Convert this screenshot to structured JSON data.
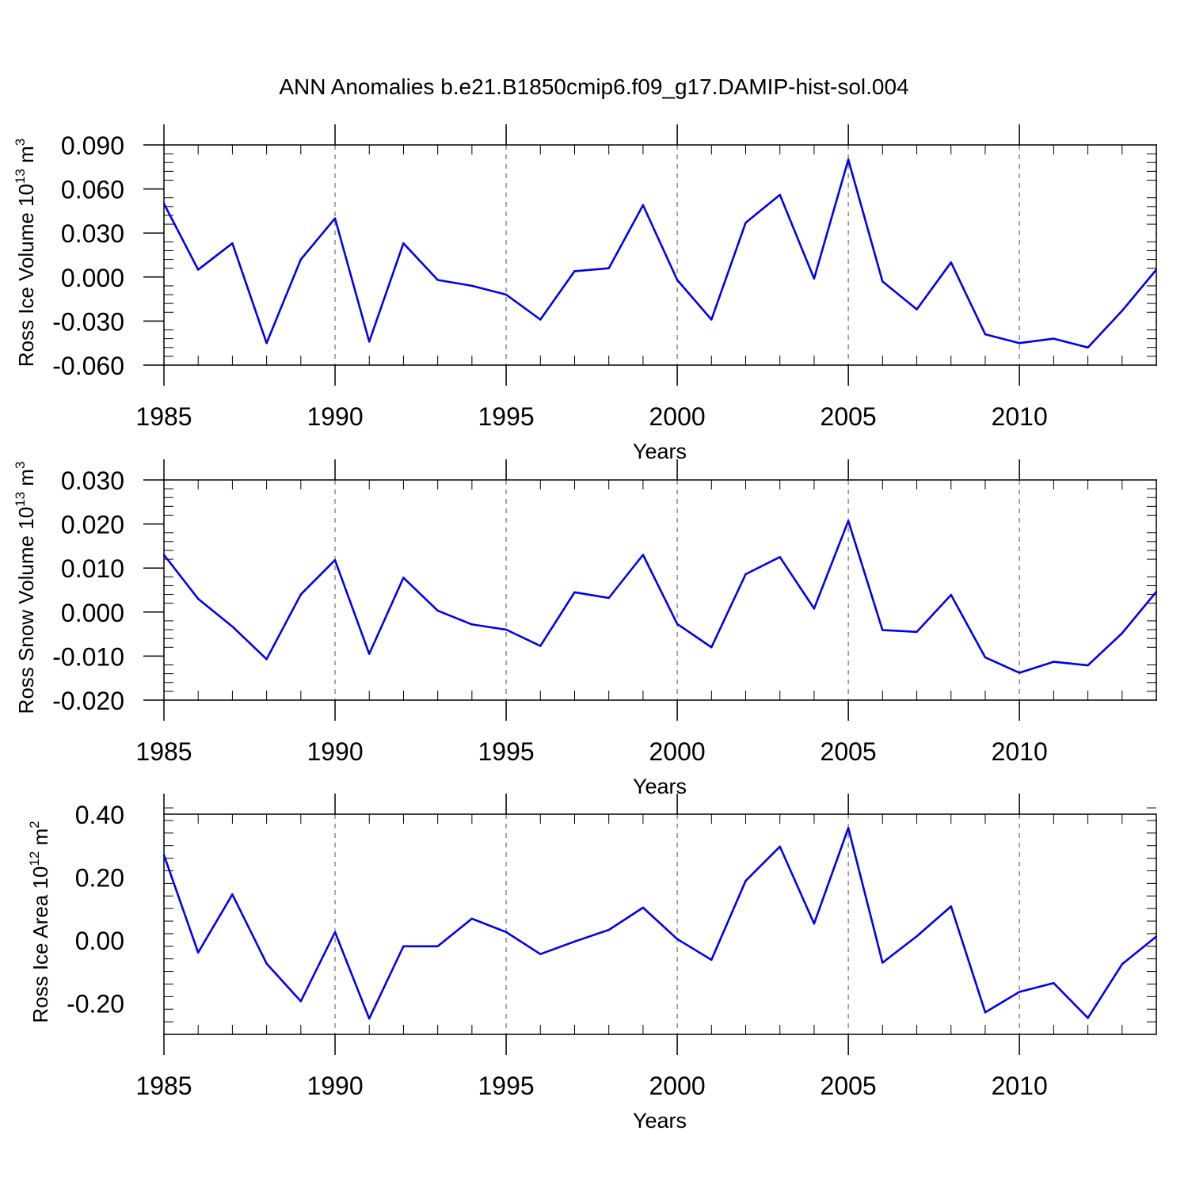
{
  "title": "ANN Anomalies b.e21.B1850cmip6.f09_g17.DAMIP-hist-sol.004",
  "colors": {
    "line": "#0000ee",
    "axis": "#000000",
    "grid": "#8c8c8c"
  },
  "chart_data": [
    {
      "type": "line",
      "ylabel": "Ross Ice Volume 10",
      "ylabel_exp": "13",
      "ylabel_unit": " m",
      "ylabel_unit_exp": "3",
      "xlabel": "Years",
      "xlim": [
        1985,
        2014
      ],
      "ylim": [
        -0.06,
        0.09
      ],
      "yticks": [
        -0.06,
        -0.03,
        0.0,
        0.03,
        0.06,
        0.09
      ],
      "ytick_labels": [
        "-0.060",
        "-0.030",
        "0.000",
        "0.030",
        "0.060",
        "0.090"
      ],
      "xticks": [
        1985,
        1990,
        1995,
        2000,
        2005,
        2010
      ],
      "xtick_labels": [
        "1985",
        "1990",
        "1995",
        "2000",
        "2005",
        "2010"
      ],
      "grid_x": [
        1990,
        1995,
        2000,
        2005,
        2010
      ],
      "series": [
        {
          "name": "Ross Ice Volume",
          "x": [
            1985,
            1986,
            1987,
            1988,
            1989,
            1990,
            1991,
            1992,
            1993,
            1994,
            1995,
            1996,
            1997,
            1998,
            1999,
            2000,
            2001,
            2002,
            2003,
            2004,
            2005,
            2006,
            2007,
            2008,
            2009,
            2010,
            2011,
            2012,
            2013,
            2014
          ],
          "values": [
            0.05,
            0.005,
            0.023,
            -0.045,
            0.012,
            0.04,
            -0.044,
            0.023,
            -0.002,
            -0.006,
            -0.012,
            -0.029,
            0.004,
            0.006,
            0.049,
            -0.002,
            -0.029,
            0.037,
            0.056,
            -0.001,
            0.08,
            -0.003,
            -0.022,
            0.01,
            -0.039,
            -0.045,
            -0.042,
            -0.048,
            -0.023,
            0.005
          ]
        }
      ]
    },
    {
      "type": "line",
      "ylabel": "Ross Snow Volume 10",
      "ylabel_exp": "13",
      "ylabel_unit": " m",
      "ylabel_unit_exp": "3",
      "xlabel": "Years",
      "xlim": [
        1985,
        2014
      ],
      "ylim": [
        -0.02,
        0.03
      ],
      "yticks": [
        -0.02,
        -0.01,
        0.0,
        0.01,
        0.02,
        0.03
      ],
      "ytick_labels": [
        "-0.020",
        "-0.010",
        "0.000",
        "0.010",
        "0.020",
        "0.030"
      ],
      "xticks": [
        1985,
        1990,
        1995,
        2000,
        2005,
        2010
      ],
      "xtick_labels": [
        "1985",
        "1990",
        "1995",
        "2000",
        "2005",
        "2010"
      ],
      "grid_x": [
        1990,
        1995,
        2000,
        2005,
        2010
      ],
      "series": [
        {
          "name": "Ross Snow Volume",
          "x": [
            1985,
            1986,
            1987,
            1988,
            1989,
            1990,
            1991,
            1992,
            1993,
            1994,
            1995,
            1996,
            1997,
            1998,
            1999,
            2000,
            2001,
            2002,
            2003,
            2004,
            2005,
            2006,
            2007,
            2008,
            2009,
            2010,
            2011,
            2012,
            2013,
            2014
          ],
          "values": [
            0.013,
            0.003,
            -0.0033,
            -0.0107,
            0.004,
            0.0118,
            -0.0095,
            0.0078,
            0.0003,
            -0.0028,
            -0.004,
            -0.0077,
            0.0045,
            0.0032,
            0.013,
            -0.0027,
            -0.008,
            0.0086,
            0.0125,
            0.0008,
            0.0207,
            -0.0041,
            -0.0045,
            0.0039,
            -0.0103,
            -0.0138,
            -0.0113,
            -0.0121,
            -0.0048,
            0.0046
          ]
        }
      ]
    },
    {
      "type": "line",
      "ylabel": "Ross Ice Area 10",
      "ylabel_exp": "12",
      "ylabel_unit": " m",
      "ylabel_unit_exp": "2",
      "xlabel": "Years",
      "xlim": [
        1985,
        2014
      ],
      "ylim": [
        -0.3,
        0.4
      ],
      "yticks": [
        -0.2,
        0.0,
        0.2,
        0.4
      ],
      "ytick_labels": [
        "-0.20",
        "0.00",
        "0.20",
        "0.40"
      ],
      "xticks": [
        1985,
        1990,
        1995,
        2000,
        2005,
        2010
      ],
      "xtick_labels": [
        "1985",
        "1990",
        "1995",
        "2000",
        "2005",
        "2010"
      ],
      "grid_x": [
        1990,
        1995,
        2000,
        2005,
        2010
      ],
      "series": [
        {
          "name": "Ross Ice Area",
          "x": [
            1985,
            1986,
            1987,
            1988,
            1989,
            1990,
            1991,
            1992,
            1993,
            1994,
            1995,
            1996,
            1997,
            1998,
            1999,
            2000,
            2001,
            2002,
            2003,
            2004,
            2005,
            2006,
            2007,
            2008,
            2009,
            2010,
            2011,
            2012,
            2013,
            2014
          ],
          "values": [
            0.27,
            -0.04,
            0.145,
            -0.075,
            -0.195,
            0.025,
            -0.25,
            -0.02,
            -0.02,
            0.068,
            0.025,
            -0.045,
            -0.005,
            0.032,
            0.103,
            0.003,
            -0.063,
            0.188,
            0.297,
            0.052,
            0.356,
            -0.072,
            0.012,
            0.107,
            -0.23,
            -0.165,
            -0.137,
            -0.248,
            -0.077,
            0.011
          ]
        }
      ]
    }
  ]
}
